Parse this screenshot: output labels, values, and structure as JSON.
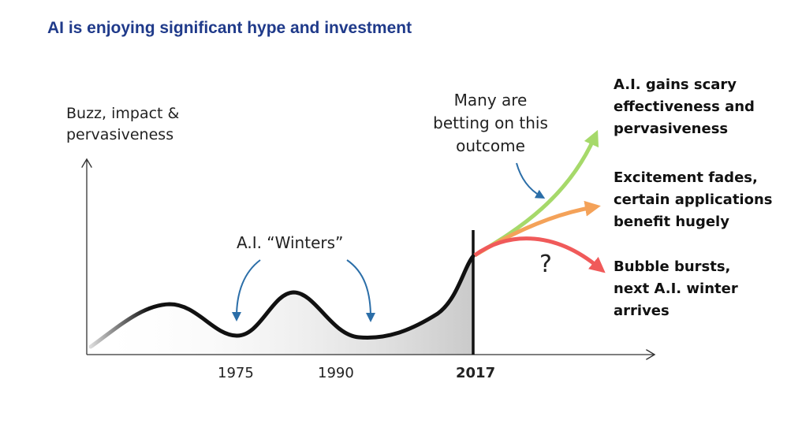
{
  "title": "AI is enjoying significant hype and investment",
  "y_axis_label_line1": "Buzz, impact &",
  "y_axis_label_line2": "pervasiveness",
  "bet_callout": [
    "Many are",
    "betting on this",
    "outcome"
  ],
  "winters_label": "A.I. “Winters”",
  "years": {
    "y1975": "1975",
    "y1990": "1990",
    "y2017": "2017"
  },
  "question_mark": "?",
  "outcomes": {
    "scary": [
      "A.I. gains scary",
      "effectiveness and",
      "pervasiveness"
    ],
    "fades": [
      "Excitement fades,",
      "certain applications",
      "benefit hugely"
    ],
    "bursts": [
      "Bubble bursts,",
      "next A.I. winter",
      "arrives"
    ]
  },
  "colors": {
    "title": "#1f3a8a",
    "scary_arrow": "#a6d96a",
    "fades_arrow": "#f4a259",
    "bursts_arrow": "#f05a5a",
    "callout_arrow": "#2b6ea8"
  }
}
